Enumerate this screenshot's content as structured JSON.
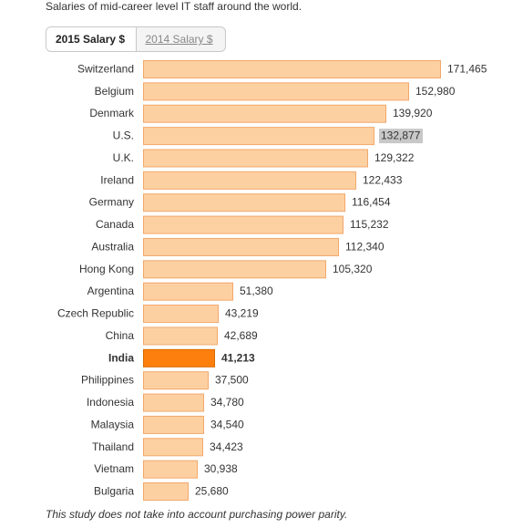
{
  "subtitle": "Salaries of mid-career level IT staff around the world.",
  "tabs": [
    {
      "label": "2015 Salary $",
      "active": true
    },
    {
      "label": "2014 Salary $",
      "active": false
    }
  ],
  "footnote": "This study does not take into account purchasing power parity.",
  "colors": {
    "bar": "#fdd0a2",
    "bar_border": "#f2a86b",
    "highlight": "#fd7f0e",
    "highlight_border": "#d96a00",
    "value_highlight_bg": "#c8c8c8"
  },
  "chart_data": {
    "type": "bar",
    "orientation": "horizontal",
    "categories": [
      "Switzerland",
      "Belgium",
      "Denmark",
      "U.S.",
      "U.K.",
      "Ireland",
      "Germany",
      "Canada",
      "Australia",
      "Hong Kong",
      "Argentina",
      "Czech Republic",
      "China",
      "India",
      "Philippines",
      "Indonesia",
      "Malaysia",
      "Thailand",
      "Vietnam",
      "Bulgaria"
    ],
    "values": [
      171465,
      152980,
      139920,
      132877,
      129322,
      122433,
      116454,
      115232,
      112340,
      105320,
      51380,
      43219,
      42689,
      41213,
      37500,
      34780,
      34540,
      34423,
      30938,
      25680
    ],
    "value_labels": [
      "171,465",
      "152,980",
      "139,920",
      "132,877",
      "129,322",
      "122,433",
      "116,454",
      "115,232",
      "112,340",
      "105,320",
      "51,380",
      "43,219",
      "42,689",
      "41,213",
      "37,500",
      "34,780",
      "34,540",
      "34,423",
      "30,938",
      "25,680"
    ],
    "highlighted_category": "India",
    "value_label_highlighted_category": "U.S.",
    "xlim": [
      0,
      171465
    ]
  }
}
